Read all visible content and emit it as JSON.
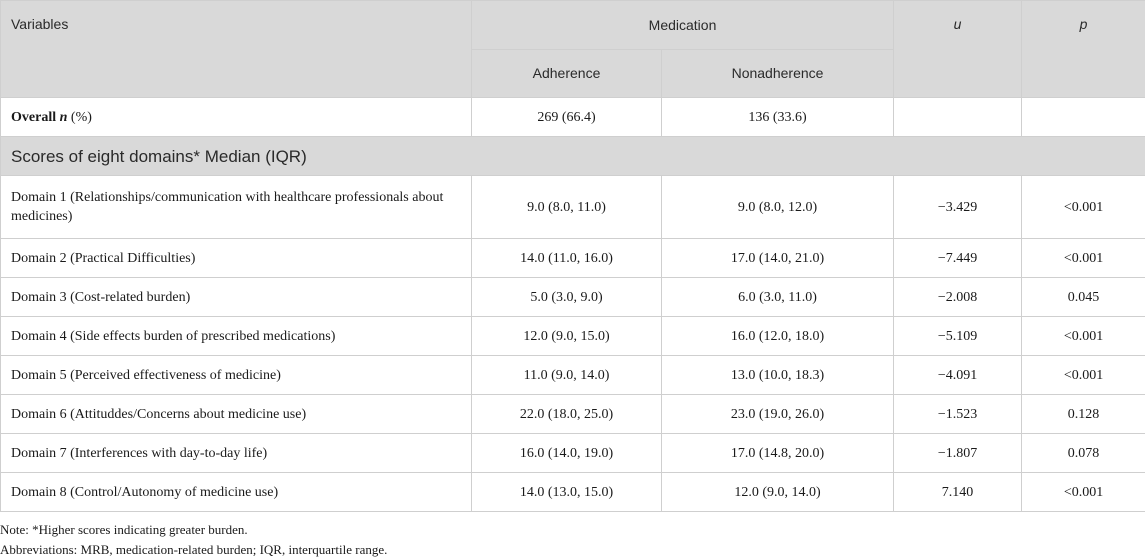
{
  "table": {
    "header": {
      "variables": "Variables",
      "medication": "Medication",
      "u": "u",
      "p": "p",
      "adherence": "Adherence",
      "nonadherence": "Nonadherence"
    },
    "overall": {
      "label_bold": "Overall",
      "label_n": "n",
      "label_pct": "(%)",
      "adherence": "269 (66.4)",
      "nonadherence": "136 (33.6)",
      "u": "",
      "p": ""
    },
    "section_label": "Scores of eight domains* Median (IQR)",
    "rows": [
      {
        "label": "Domain 1 (Relationships/communication with healthcare professionals about medicines)",
        "adherence": "9.0 (8.0, 11.0)",
        "nonadherence": "9.0 (8.0, 12.0)",
        "u": "−3.429",
        "p": "<0.001"
      },
      {
        "label": "Domain 2 (Practical Difficulties)",
        "adherence": "14.0 (11.0, 16.0)",
        "nonadherence": "17.0 (14.0, 21.0)",
        "u": "−7.449",
        "p": "<0.001"
      },
      {
        "label": "Domain 3 (Cost-related burden)",
        "adherence": "5.0 (3.0, 9.0)",
        "nonadherence": "6.0 (3.0, 11.0)",
        "u": "−2.008",
        "p": "0.045"
      },
      {
        "label": "Domain 4 (Side effects burden of prescribed medications)",
        "adherence": "12.0 (9.0, 15.0)",
        "nonadherence": "16.0 (12.0, 18.0)",
        "u": "−5.109",
        "p": "<0.001"
      },
      {
        "label": "Domain 5 (Perceived effectiveness of medicine)",
        "adherence": "11.0 (9.0, 14.0)",
        "nonadherence": "13.0 (10.0, 18.3)",
        "u": "−4.091",
        "p": "<0.001"
      },
      {
        "label": "Domain 6 (Attituddes/Concerns about medicine use)",
        "adherence": "22.0 (18.0, 25.0)",
        "nonadherence": "23.0 (19.0, 26.0)",
        "u": "−1.523",
        "p": "0.128"
      },
      {
        "label": "Domain 7 (Interferences with day-to-day life)",
        "adherence": "16.0 (14.0, 19.0)",
        "nonadherence": "17.0 (14.8, 20.0)",
        "u": "−1.807",
        "p": "0.078"
      },
      {
        "label": "Domain 8 (Control/Autonomy of medicine use)",
        "adherence": "14.0 (13.0, 15.0)",
        "nonadherence": "12.0 (9.0, 14.0)",
        "u": "7.140",
        "p": "<0.001"
      }
    ]
  },
  "notes": {
    "note": "Note: *Higher scores indicating greater burden.",
    "abbreviations": "Abbreviations: MRB, medication-related burden; IQR, interquartile range."
  }
}
